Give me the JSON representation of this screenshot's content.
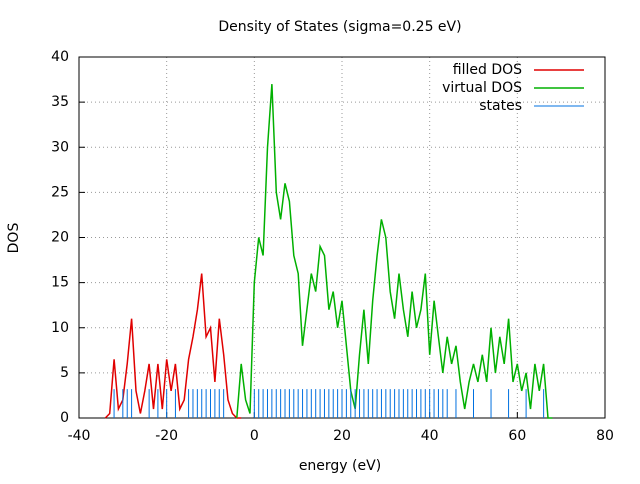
{
  "chart_data": {
    "type": "line",
    "title": "Density of States (sigma=0.25 eV)",
    "x_label": "energy (eV)",
    "y_label": "DOS",
    "xlim": [
      -40,
      80
    ],
    "xticks": [
      -40,
      -20,
      0,
      20,
      40,
      60,
      80
    ],
    "ylim": [
      0,
      40
    ],
    "yticks": [
      0,
      5,
      10,
      15,
      20,
      25,
      30,
      35,
      40
    ],
    "grid": true,
    "legend": "top-right",
    "series": [
      {
        "name": "filled DOS",
        "color": "#e00000",
        "x": [
          -34,
          -33,
          -32,
          -31,
          -30,
          -29,
          -28,
          -27,
          -26,
          -25,
          -24,
          -23,
          -22,
          -21,
          -20,
          -19,
          -18,
          -17,
          -16,
          -15,
          -14,
          -13,
          -12,
          -11,
          -10,
          -9,
          -8,
          -7,
          -6,
          -5,
          -4,
          -3
        ],
        "values": [
          0,
          0.5,
          6.5,
          1,
          2,
          6,
          11,
          3,
          0.5,
          3,
          6,
          1,
          6,
          1,
          6.5,
          3,
          6,
          1,
          2,
          6.5,
          9,
          12,
          16,
          9,
          10,
          4,
          11,
          7,
          2,
          0.5,
          0,
          0
        ]
      },
      {
        "name": "virtual DOS",
        "color": "#00b000",
        "x": [
          -4,
          -3,
          -2,
          -1,
          0,
          1,
          2,
          3,
          4,
          5,
          6,
          7,
          8,
          9,
          10,
          11,
          12,
          13,
          14,
          15,
          16,
          17,
          18,
          19,
          20,
          21,
          22,
          23,
          24,
          25,
          26,
          27,
          28,
          29,
          30,
          31,
          32,
          33,
          34,
          35,
          36,
          37,
          38,
          39,
          40,
          41,
          42,
          43,
          44,
          45,
          46,
          47,
          48,
          49,
          50,
          51,
          52,
          53,
          54,
          55,
          56,
          57,
          58,
          59,
          60,
          61,
          62,
          63,
          64,
          65,
          66,
          67,
          68
        ],
        "values": [
          0,
          6,
          2,
          0.5,
          15,
          20,
          18,
          30,
          37,
          25,
          22,
          26,
          24,
          18,
          16,
          8,
          12,
          16,
          14,
          19,
          18,
          12,
          14,
          10,
          13,
          8,
          3,
          1,
          7,
          12,
          6,
          13,
          18,
          22,
          20,
          14,
          11,
          16,
          12,
          9,
          14,
          10,
          12,
          16,
          7,
          13,
          9,
          5,
          9,
          6,
          8,
          4,
          1,
          4,
          6,
          4,
          7,
          4,
          10,
          5,
          9,
          6,
          11,
          4,
          6,
          3,
          5,
          1,
          6,
          3,
          6,
          0,
          0
        ]
      },
      {
        "name": "states",
        "color": "#0070e0",
        "style": "impulses",
        "height": 3.2,
        "x": [
          -32,
          -30,
          -29,
          -28,
          -24,
          -22,
          -20,
          -18,
          -15,
          -14,
          -13,
          -12,
          -11,
          -10,
          -9,
          -8,
          -7,
          0,
          1,
          2,
          3,
          4,
          5,
          6,
          7,
          8,
          9,
          10,
          11,
          12,
          13,
          14,
          15,
          16,
          17,
          18,
          19,
          20,
          21,
          22,
          23,
          24,
          25,
          26,
          27,
          28,
          29,
          30,
          31,
          32,
          33,
          34,
          35,
          36,
          37,
          38,
          39,
          40,
          41,
          42,
          43,
          44,
          46,
          50,
          54,
          58,
          62,
          66
        ]
      }
    ]
  }
}
